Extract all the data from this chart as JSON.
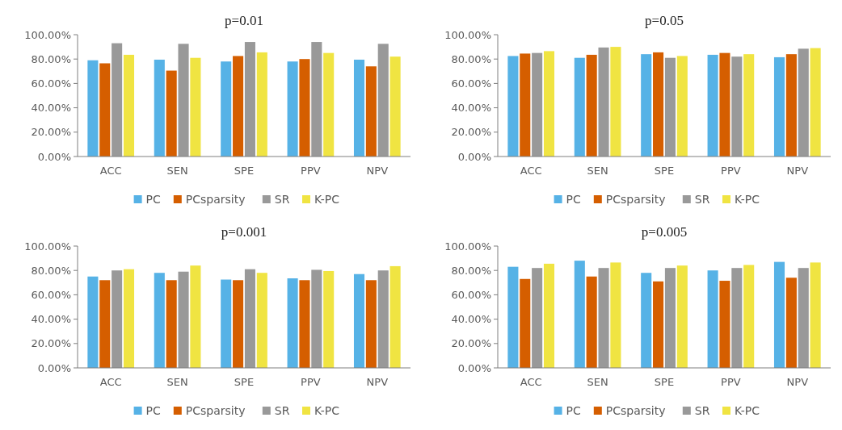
{
  "chart_data": [
    {
      "type": "bar",
      "title": "p=0.01",
      "categories": [
        "ACC",
        "SEN",
        "SPE",
        "PPV",
        "NPV"
      ],
      "series": [
        {
          "name": "PC",
          "color": "#56b2e6",
          "values": [
            79,
            79.5,
            78,
            78,
            79.5
          ]
        },
        {
          "name": "PCsparsity",
          "color": "#d55e00",
          "values": [
            76.5,
            70.5,
            82.5,
            80,
            74
          ]
        },
        {
          "name": "SR",
          "color": "#999999",
          "values": [
            93,
            92.5,
            94,
            94,
            92.5
          ]
        },
        {
          "name": "K-PC",
          "color": "#f0e442",
          "values": [
            83.5,
            81,
            85.5,
            85,
            82
          ]
        }
      ],
      "ylim": [
        0,
        100
      ],
      "yticks": [
        {
          "value": 0,
          "label": "0.00%"
        },
        {
          "value": 20,
          "label": "20.00%"
        },
        {
          "value": 40,
          "label": "40.00%"
        },
        {
          "value": 60,
          "label": "60.00%"
        },
        {
          "value": 80,
          "label": "80.00%"
        },
        {
          "value": 100,
          "label": "100.00%"
        }
      ],
      "legend": "bottom",
      "grid": false
    },
    {
      "type": "bar",
      "title": "p=0.05",
      "categories": [
        "ACC",
        "SEN",
        "SPE",
        "PPV",
        "NPV"
      ],
      "series": [
        {
          "name": "PC",
          "color": "#56b2e6",
          "values": [
            82.5,
            81,
            84,
            83.5,
            81.5
          ]
        },
        {
          "name": "PCsparsity",
          "color": "#d55e00",
          "values": [
            84.5,
            83.5,
            85.5,
            85,
            84
          ]
        },
        {
          "name": "SR",
          "color": "#999999",
          "values": [
            85,
            89.5,
            81,
            82,
            88.5
          ]
        },
        {
          "name": "K-PC",
          "color": "#f0e442",
          "values": [
            86.5,
            90,
            82.5,
            84,
            89
          ]
        }
      ],
      "ylim": [
        0,
        100
      ],
      "yticks": [
        {
          "value": 0,
          "label": "0.00%"
        },
        {
          "value": 20,
          "label": "20.00%"
        },
        {
          "value": 40,
          "label": "40.00%"
        },
        {
          "value": 60,
          "label": "60.00%"
        },
        {
          "value": 80,
          "label": "80.00%"
        },
        {
          "value": 100,
          "label": "100.00%"
        }
      ],
      "legend": "bottom",
      "grid": false
    },
    {
      "type": "bar",
      "title": "p=0.001",
      "categories": [
        "ACC",
        "SEN",
        "SPE",
        "PPV",
        "NPV"
      ],
      "series": [
        {
          "name": "PC",
          "color": "#56b2e6",
          "values": [
            75,
            78,
            72.5,
            73.5,
            77
          ]
        },
        {
          "name": "PCsparsity",
          "color": "#d55e00",
          "values": [
            72,
            72,
            72,
            72,
            72
          ]
        },
        {
          "name": "SR",
          "color": "#999999",
          "values": [
            80,
            79,
            81,
            80.5,
            80
          ]
        },
        {
          "name": "K-PC",
          "color": "#f0e442",
          "values": [
            81,
            84,
            78,
            79.5,
            83.5
          ]
        }
      ],
      "ylim": [
        0,
        100
      ],
      "yticks": [
        {
          "value": 0,
          "label": "0.00%"
        },
        {
          "value": 20,
          "label": "20.00%"
        },
        {
          "value": 40,
          "label": "40.00%"
        },
        {
          "value": 60,
          "label": "60.00%"
        },
        {
          "value": 80,
          "label": "80.00%"
        },
        {
          "value": 100,
          "label": "100.00%"
        }
      ],
      "legend": "bottom",
      "grid": false
    },
    {
      "type": "bar",
      "title": "p=0.005",
      "categories": [
        "ACC",
        "SEN",
        "SPE",
        "PPV",
        "NPV"
      ],
      "series": [
        {
          "name": "PC",
          "color": "#56b2e6",
          "values": [
            83,
            88,
            78,
            80,
            87
          ]
        },
        {
          "name": "PCsparsity",
          "color": "#d55e00",
          "values": [
            73,
            75,
            71,
            71.5,
            74
          ]
        },
        {
          "name": "SR",
          "color": "#999999",
          "values": [
            82,
            82,
            82,
            82,
            82
          ]
        },
        {
          "name": "K-PC",
          "color": "#f0e442",
          "values": [
            85.5,
            86.5,
            84,
            84.5,
            86.5
          ]
        }
      ],
      "ylim": [
        0,
        100
      ],
      "yticks": [
        {
          "value": 0,
          "label": "0.00%"
        },
        {
          "value": 20,
          "label": "20.00%"
        },
        {
          "value": 40,
          "label": "40.00%"
        },
        {
          "value": 60,
          "label": "60.00%"
        },
        {
          "value": 80,
          "label": "80.00%"
        },
        {
          "value": 100,
          "label": "100.00%"
        }
      ],
      "legend": "bottom",
      "grid": false
    }
  ]
}
